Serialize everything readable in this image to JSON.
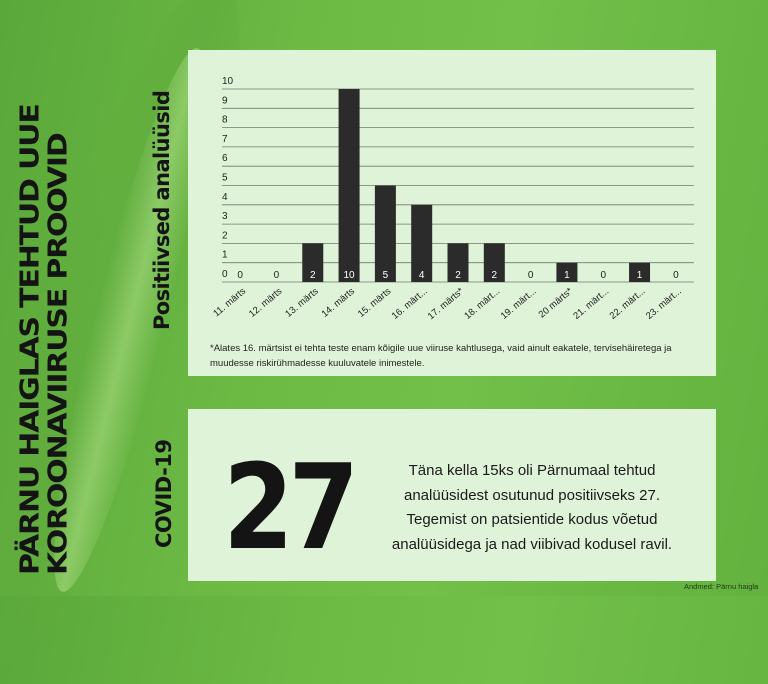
{
  "headline": [
    "PÄRNU HAIGLAS TEHTUD UUE",
    "KOROONAVIIRUSE PROOVID"
  ],
  "side_label": "COVID-19",
  "chart_data": {
    "type": "bar",
    "ylabel": "Positiivsed analüüsid",
    "categories": [
      "11. märts",
      "12. märts",
      "13. märts",
      "14. märts",
      "15. märts",
      "16. märt...",
      "17. märts*",
      "18. märt...",
      "19. märt...",
      "20 märts*",
      "21. märt...",
      "22. märt...",
      "23. märt..."
    ],
    "values": [
      0,
      0,
      2,
      10,
      5,
      4,
      2,
      2,
      0,
      1,
      0,
      1,
      0
    ],
    "ylim": [
      0,
      10
    ],
    "yticks": [
      "0",
      "1",
      "2",
      "3",
      "4",
      "5",
      "6",
      "7",
      "8",
      "9",
      "10"
    ],
    "grid": true,
    "bar_color": "#2b2b2b",
    "data_labels": true
  },
  "footnote": "*Alates 16. märtsist ei tehta teste enam kõigile uue viiruse kahtlusega, vaid ainult eakatele, tervisehäiretega ja muudesse riskirühmadesse kuuluvatele inimestele.",
  "big_number": "27",
  "info_lines": [
    "Täna kella 15ks oli Pärnumaal tehtud",
    "analüüsidest osutunud positiivseks 27.",
    "Tegemist on patsientide kodus võetud",
    "analüüsidega ja nad viibivad kodusel ravil."
  ],
  "source": "Andmed: Pärnu haigla",
  "colors": {
    "background": "#6cb944",
    "panel": "#dff3d8",
    "bar": "#2b2b2b",
    "text": "#141414"
  }
}
